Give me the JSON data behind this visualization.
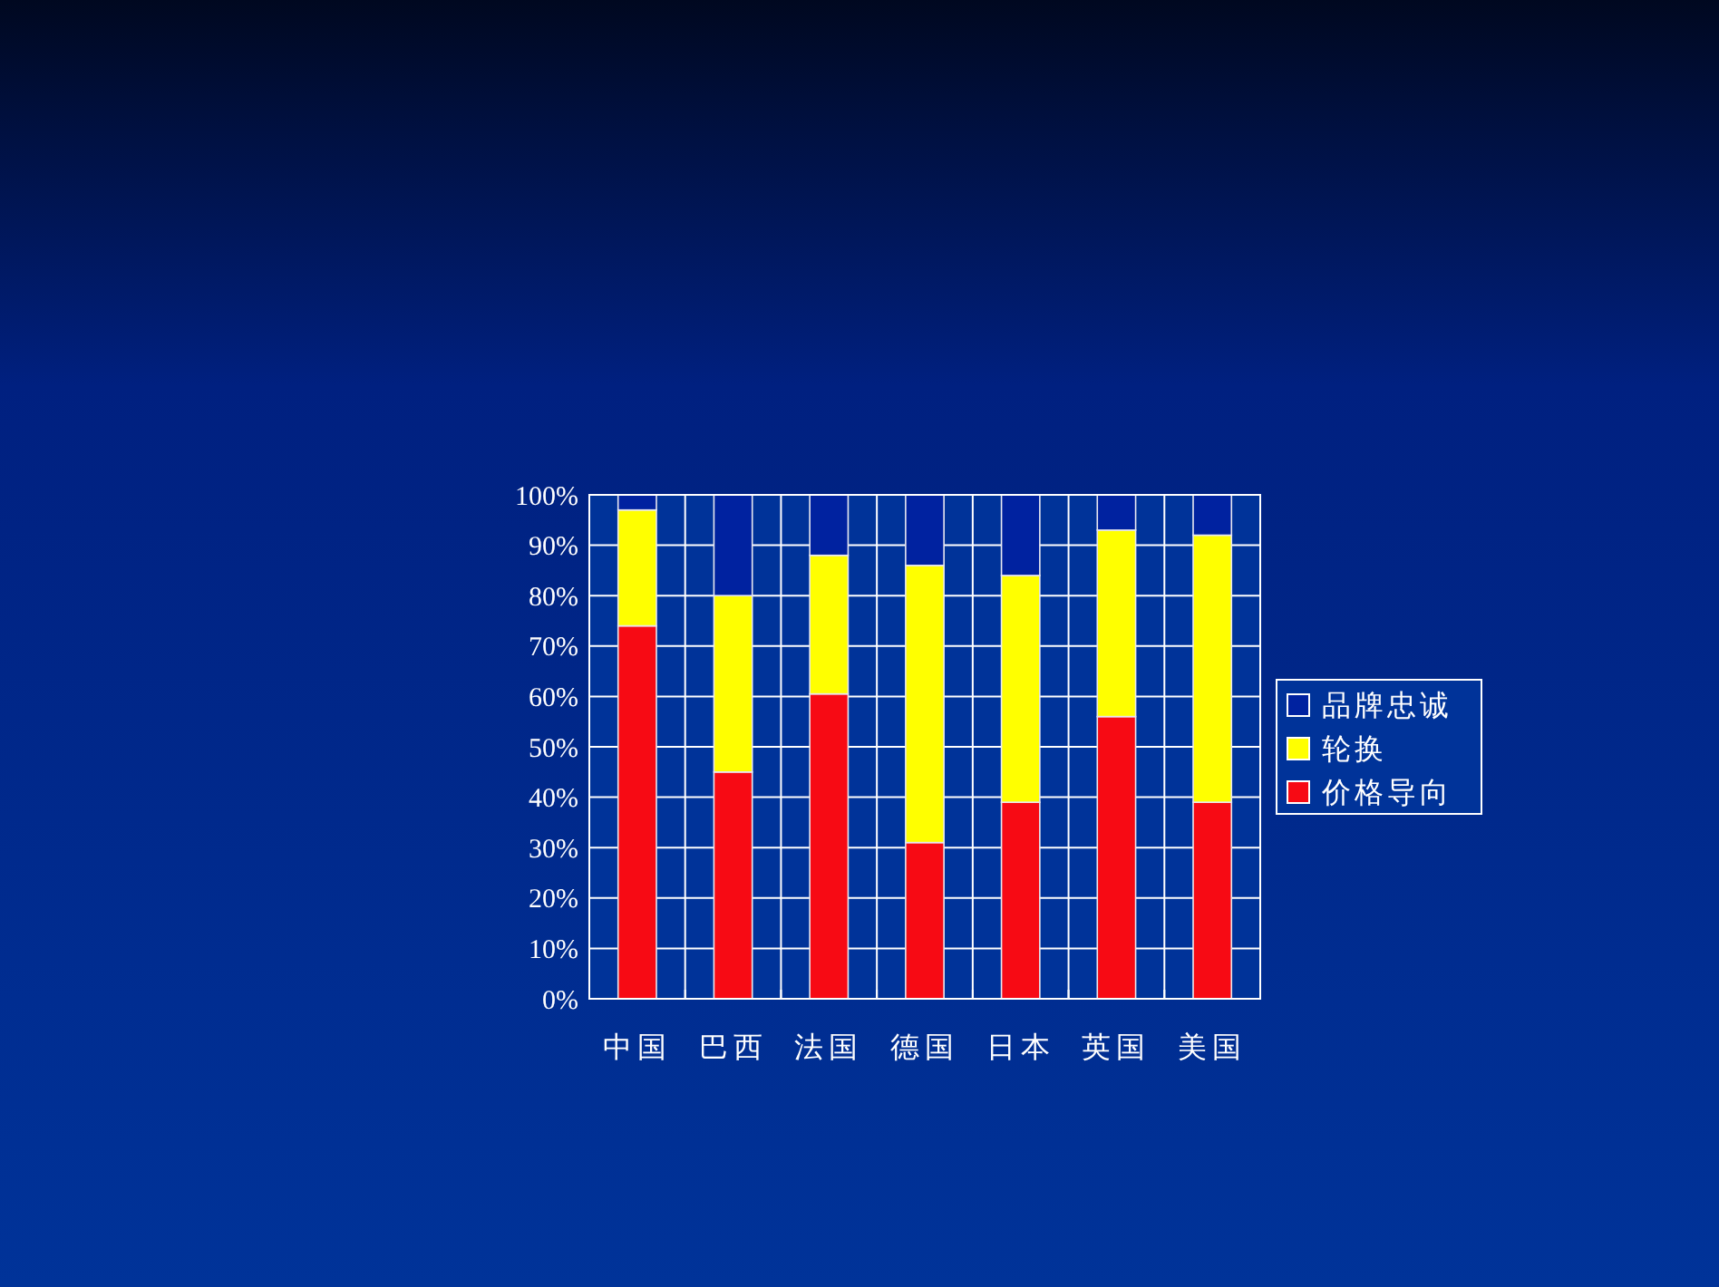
{
  "chart_data": {
    "type": "bar",
    "stacked": true,
    "categories": [
      "中国",
      "巴西",
      "法国",
      "德国",
      "日本",
      "英国",
      "美国"
    ],
    "series": [
      {
        "name": "价格导向",
        "color": "#f70a14",
        "values": [
          74,
          45,
          60.5,
          31,
          39,
          56,
          39
        ]
      },
      {
        "name": "轮换",
        "color": "#ffff00",
        "values": [
          23,
          35,
          27.5,
          55,
          45,
          37,
          53
        ]
      },
      {
        "name": "品牌忠诚",
        "color": "#0022a0",
        "values": [
          3,
          20,
          12,
          14,
          16,
          7,
          8
        ]
      }
    ],
    "ylim": [
      0,
      100
    ],
    "yticks": [
      {
        "value": 0,
        "label": "0%"
      },
      {
        "value": 10,
        "label": "10%"
      },
      {
        "value": 20,
        "label": "20%"
      },
      {
        "value": 30,
        "label": "30%"
      },
      {
        "value": 40,
        "label": "40%"
      },
      {
        "value": 50,
        "label": "50%"
      },
      {
        "value": 60,
        "label": "60%"
      },
      {
        "value": 70,
        "label": "70%"
      },
      {
        "value": 80,
        "label": "80%"
      },
      {
        "value": 90,
        "label": "90%"
      },
      {
        "value": 100,
        "label": "100%"
      }
    ],
    "grid": true,
    "legend": "right"
  }
}
